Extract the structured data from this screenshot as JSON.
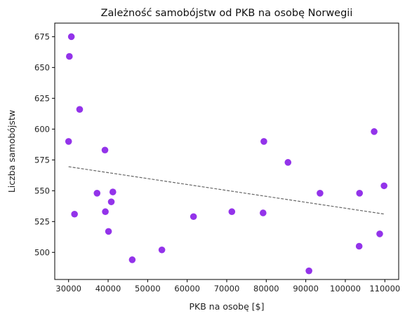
{
  "chart_data": {
    "type": "scatter",
    "title": "Zależność samobójstw od PKB na osobę Norwegii",
    "xlabel": "PKB na osobę [$]",
    "ylabel": "Liczba samobójstw",
    "xlim": [
      26500,
      113500
    ],
    "ylim": [
      478,
      686
    ],
    "xticks": [
      30000,
      40000,
      50000,
      60000,
      70000,
      80000,
      90000,
      100000,
      110000
    ],
    "yticks": [
      500,
      525,
      550,
      575,
      600,
      625,
      650,
      675
    ],
    "grid": false,
    "point_color": "#9333ea",
    "trend_color": "#666666",
    "points": [
      {
        "x": 30000,
        "y": 590
      },
      {
        "x": 30200,
        "y": 659
      },
      {
        "x": 30700,
        "y": 675
      },
      {
        "x": 31500,
        "y": 531
      },
      {
        "x": 32800,
        "y": 616
      },
      {
        "x": 37200,
        "y": 548
      },
      {
        "x": 39200,
        "y": 583
      },
      {
        "x": 39300,
        "y": 533
      },
      {
        "x": 40100,
        "y": 517
      },
      {
        "x": 40800,
        "y": 541
      },
      {
        "x": 41200,
        "y": 549
      },
      {
        "x": 46100,
        "y": 494
      },
      {
        "x": 53600,
        "y": 502
      },
      {
        "x": 61600,
        "y": 529
      },
      {
        "x": 71300,
        "y": 533
      },
      {
        "x": 79200,
        "y": 532
      },
      {
        "x": 79400,
        "y": 590
      },
      {
        "x": 85500,
        "y": 573
      },
      {
        "x": 90800,
        "y": 485
      },
      {
        "x": 93600,
        "y": 548
      },
      {
        "x": 103500,
        "y": 505
      },
      {
        "x": 103600,
        "y": 548
      },
      {
        "x": 107300,
        "y": 598
      },
      {
        "x": 108700,
        "y": 515
      },
      {
        "x": 109800,
        "y": 554
      }
    ],
    "trendline": {
      "x": [
        30000,
        110000
      ],
      "y": [
        569.5,
        531
      ]
    }
  }
}
